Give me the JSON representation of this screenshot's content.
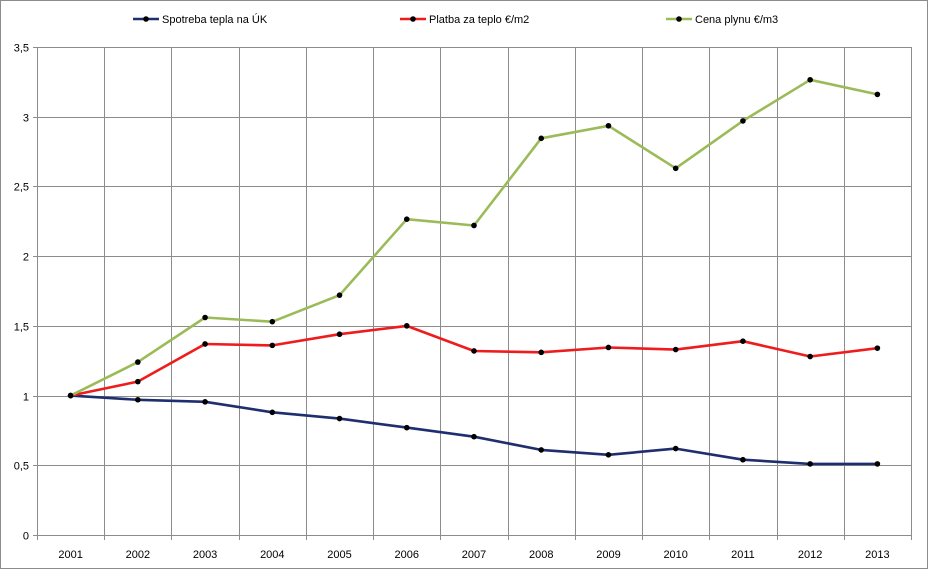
{
  "chart_data": {
    "type": "line",
    "title": "",
    "xlabel": "",
    "ylabel": "",
    "categories": [
      "2001",
      "2002",
      "2003",
      "2004",
      "2005",
      "2006",
      "2007",
      "2008",
      "2009",
      "2010",
      "2011",
      "2012",
      "2013"
    ],
    "ylim": [
      0,
      3.5
    ],
    "yticks": [
      "0",
      "0,5",
      "1",
      "1,5",
      "2",
      "2,5",
      "3",
      "3,5"
    ],
    "grid": true,
    "legend_position": "top",
    "series": [
      {
        "name": "Spotreba tepla na ÚK",
        "color": "#1f2e6e",
        "values": [
          1.0,
          0.97,
          0.955,
          0.88,
          0.835,
          0.77,
          0.705,
          0.61,
          0.575,
          0.62,
          0.54,
          0.51,
          0.51
        ]
      },
      {
        "name": "Platba za teplo €/m2",
        "color": "#ee1c1c",
        "values": [
          1.0,
          1.1,
          1.37,
          1.36,
          1.44,
          1.5,
          1.32,
          1.31,
          1.345,
          1.33,
          1.39,
          1.28,
          1.34
        ]
      },
      {
        "name": "Cena plynu €/m3",
        "color": "#9bbb59",
        "values": [
          1.0,
          1.24,
          1.56,
          1.53,
          1.72,
          2.265,
          2.22,
          2.845,
          2.935,
          2.63,
          2.97,
          3.265,
          3.16
        ]
      }
    ]
  }
}
